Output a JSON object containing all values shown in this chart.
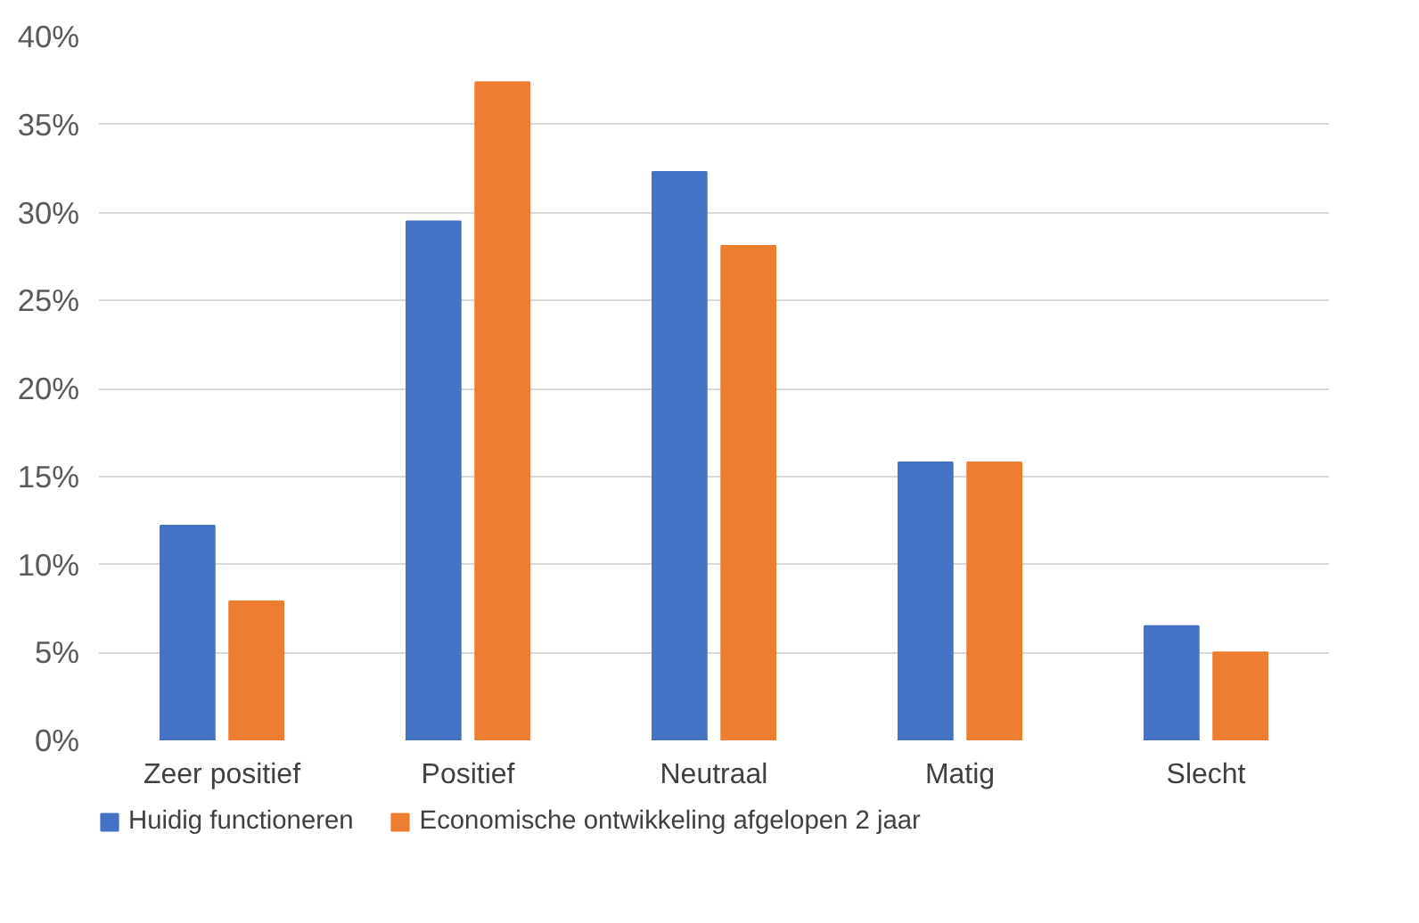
{
  "chart_data": {
    "type": "bar",
    "categories": [
      "Zeer positief",
      "Positief",
      "Neutraal",
      "Matig",
      "Slecht"
    ],
    "series": [
      {
        "name": "Huidig functioneren",
        "color": "#4472c4",
        "values": [
          12.2,
          29.5,
          32.3,
          15.8,
          6.5
        ]
      },
      {
        "name": "Economische ontwikkeling afgelopen 2 jaar",
        "color": "#ed7d31",
        "values": [
          7.9,
          37.4,
          28.1,
          15.8,
          5.0
        ]
      }
    ],
    "ylim": [
      0,
      40
    ],
    "yticks": [
      {
        "value": 0,
        "label": "0%"
      },
      {
        "value": 5,
        "label": "5%"
      },
      {
        "value": 10,
        "label": "10%"
      },
      {
        "value": 15,
        "label": "15%"
      },
      {
        "value": 20,
        "label": "20%"
      },
      {
        "value": 25,
        "label": "25%"
      },
      {
        "value": 30,
        "label": "30%"
      },
      {
        "value": 35,
        "label": "35%"
      },
      {
        "value": 40,
        "label": "40%"
      }
    ],
    "grid": "y",
    "legend": "bottom"
  }
}
